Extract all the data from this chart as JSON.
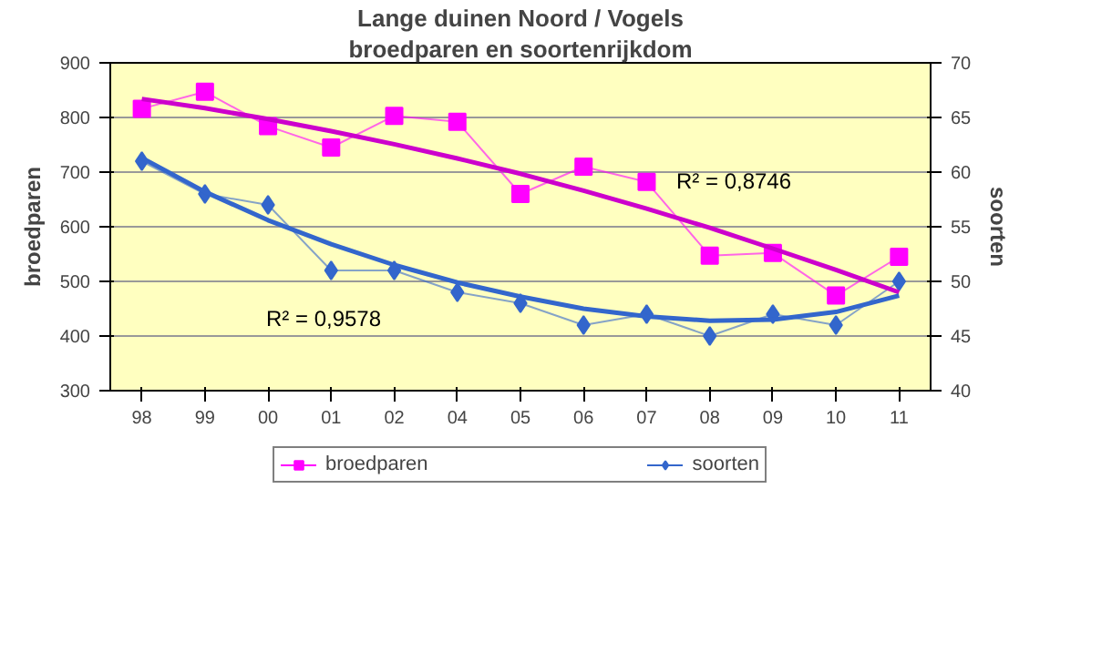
{
  "chart_data": {
    "type": "line",
    "title": "Lange duinen Noord / Vogels",
    "subtitle": "broedparen en soortenrijkdom",
    "ylabel": "broedparen",
    "y2label": "soorten",
    "categories": [
      "98",
      "99",
      "00",
      "01",
      "02",
      "04",
      "05",
      "06",
      "07",
      "08",
      "09",
      "10",
      "11"
    ],
    "series": [
      {
        "name": "broedparen",
        "color": "#ff00ff",
        "marker": "square",
        "values": [
          816,
          847,
          784,
          745,
          803,
          792,
          660,
          710,
          682,
          547,
          552,
          474,
          545
        ]
      },
      {
        "name": "soorten",
        "color": "#3366cc",
        "marker": "diamond",
        "axis": "y2",
        "values": [
          61,
          58,
          57,
          51,
          51,
          49,
          48,
          46,
          47,
          45,
          47,
          46,
          50
        ]
      },
      {
        "color": "#cc00cc",
        "marker": "none",
        "values": [
          834,
          817,
          797,
          775,
          751,
          725,
          697,
          666,
          633,
          598,
          560,
          521,
          480
        ]
      },
      {
        "color": "#3366cc",
        "marker": "none",
        "axis": "y2",
        "values": [
          61.3,
          58.2,
          55.6,
          53.4,
          51.5,
          49.9,
          48.6,
          47.5,
          46.8,
          46.4,
          46.5,
          47.2,
          48.7
        ]
      }
    ],
    "ylim": [
      300,
      900
    ],
    "yticks": [
      300,
      400,
      500,
      600,
      700,
      800,
      900
    ],
    "y2lim": [
      40,
      70
    ],
    "y2ticks": [
      40,
      45,
      50,
      55,
      60,
      65,
      70
    ],
    "grid": "y",
    "legend": "bottom",
    "annotations": [
      "R² = 0,9578",
      "R² = 0,8746"
    ]
  }
}
